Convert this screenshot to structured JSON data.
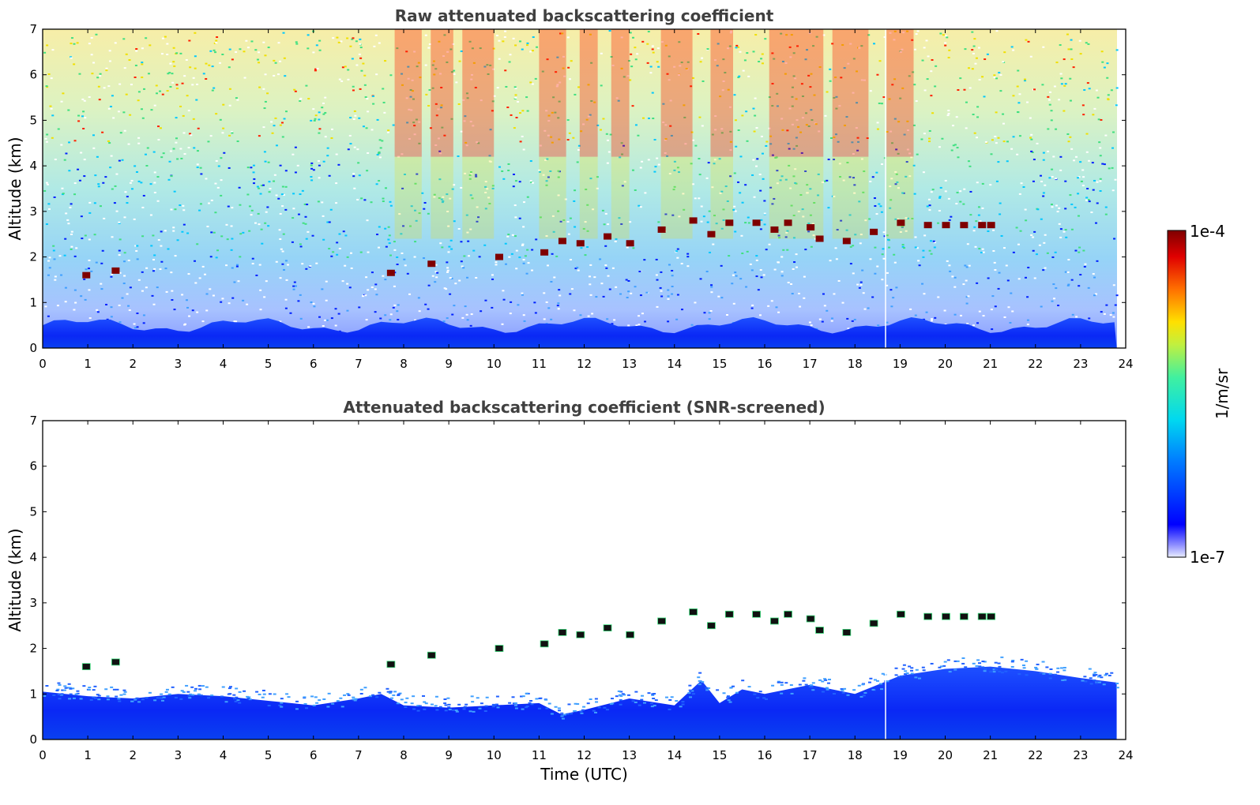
{
  "chart_data": [
    {
      "type": "heatmap",
      "title": "Raw attenuated backscattering coefficient",
      "xlabel": "",
      "ylabel": "Altitude (km)",
      "xlim": [
        0,
        24
      ],
      "ylim": [
        0,
        7
      ],
      "x_ticks": [
        "0",
        "1",
        "2",
        "3",
        "4",
        "5",
        "6",
        "7",
        "8",
        "9",
        "10",
        "11",
        "12",
        "13",
        "14",
        "15",
        "16",
        "17",
        "18",
        "19",
        "20",
        "21",
        "22",
        "23",
        "24"
      ],
      "y_ticks": [
        "0",
        "1",
        "2",
        "3",
        "4",
        "5",
        "6",
        "7"
      ],
      "data_end_time": 23.8,
      "features": {
        "boundary_layer": {
          "top_km": 0.5
        },
        "cloud_layer": [
          {
            "t": 0.95,
            "alt": 1.6
          },
          {
            "t": 1.6,
            "alt": 1.7
          },
          {
            "t": 7.7,
            "alt": 1.65
          },
          {
            "t": 8.6,
            "alt": 1.85
          },
          {
            "t": 10.1,
            "alt": 2.0
          },
          {
            "t": 11.1,
            "alt": 2.1
          },
          {
            "t": 11.5,
            "alt": 2.35
          },
          {
            "t": 11.9,
            "alt": 2.3
          },
          {
            "t": 12.5,
            "alt": 2.45
          },
          {
            "t": 13.0,
            "alt": 2.3
          },
          {
            "t": 13.7,
            "alt": 2.6
          },
          {
            "t": 14.4,
            "alt": 2.8
          },
          {
            "t": 14.8,
            "alt": 2.5
          },
          {
            "t": 15.2,
            "alt": 2.75
          },
          {
            "t": 15.8,
            "alt": 2.75
          },
          {
            "t": 16.2,
            "alt": 2.6
          },
          {
            "t": 16.5,
            "alt": 2.75
          },
          {
            "t": 17.0,
            "alt": 2.65
          },
          {
            "t": 17.2,
            "alt": 2.4
          },
          {
            "t": 17.8,
            "alt": 2.35
          },
          {
            "t": 18.4,
            "alt": 2.55
          },
          {
            "t": 19.0,
            "alt": 2.75
          },
          {
            "t": 19.6,
            "alt": 2.7
          },
          {
            "t": 20.0,
            "alt": 2.7
          },
          {
            "t": 20.4,
            "alt": 2.7
          },
          {
            "t": 20.8,
            "alt": 2.7
          },
          {
            "t": 21.0,
            "alt": 2.7
          }
        ]
      }
    },
    {
      "type": "heatmap",
      "title": "Attenuated backscattering coefficient (SNR-screened)",
      "xlabel": "Time (UTC)",
      "ylabel": "Altitude (km)",
      "xlim": [
        0,
        24
      ],
      "ylim": [
        0,
        7
      ],
      "x_ticks": [
        "0",
        "1",
        "2",
        "3",
        "4",
        "5",
        "6",
        "7",
        "8",
        "9",
        "10",
        "11",
        "12",
        "13",
        "14",
        "15",
        "16",
        "17",
        "18",
        "19",
        "20",
        "21",
        "22",
        "23",
        "24"
      ],
      "y_ticks": [
        "0",
        "1",
        "2",
        "3",
        "4",
        "5",
        "6",
        "7"
      ],
      "data_end_time": 23.8,
      "features": {
        "screened_boundary_layer_top": [
          {
            "t": 0,
            "alt": 1.05
          },
          {
            "t": 1,
            "alt": 0.95
          },
          {
            "t": 2,
            "alt": 0.9
          },
          {
            "t": 3,
            "alt": 1.0
          },
          {
            "t": 4,
            "alt": 0.95
          },
          {
            "t": 5,
            "alt": 0.85
          },
          {
            "t": 6,
            "alt": 0.75
          },
          {
            "t": 7,
            "alt": 0.9
          },
          {
            "t": 7.5,
            "alt": 1.0
          },
          {
            "t": 8,
            "alt": 0.75
          },
          {
            "t": 9,
            "alt": 0.7
          },
          {
            "t": 10,
            "alt": 0.75
          },
          {
            "t": 11,
            "alt": 0.8
          },
          {
            "t": 11.5,
            "alt": 0.55
          },
          {
            "t": 12,
            "alt": 0.65
          },
          {
            "t": 13,
            "alt": 0.9
          },
          {
            "t": 14,
            "alt": 0.75
          },
          {
            "t": 14.6,
            "alt": 1.3
          },
          {
            "t": 15,
            "alt": 0.8
          },
          {
            "t": 15.5,
            "alt": 1.1
          },
          {
            "t": 16,
            "alt": 1.0
          },
          {
            "t": 17,
            "alt": 1.2
          },
          {
            "t": 18,
            "alt": 1.0
          },
          {
            "t": 19,
            "alt": 1.4
          },
          {
            "t": 20,
            "alt": 1.55
          },
          {
            "t": 21,
            "alt": 1.6
          },
          {
            "t": 22,
            "alt": 1.5
          },
          {
            "t": 23,
            "alt": 1.35
          },
          {
            "t": 23.8,
            "alt": 1.25
          }
        ]
      }
    }
  ],
  "colorbar": {
    "label": "1/m/sr",
    "max_label": "1e-4",
    "min_label": "1e-7",
    "colormap": "jet",
    "scale": "log",
    "range": [
      1e-07,
      0.0001
    ]
  },
  "colors": {
    "dark_red": "#7f0000",
    "red": "#ff2000",
    "yellow": "#f0e000",
    "green": "#40e080",
    "cyan": "#00c8ff",
    "blue": "#0020ff",
    "title_gray": "#404040"
  }
}
